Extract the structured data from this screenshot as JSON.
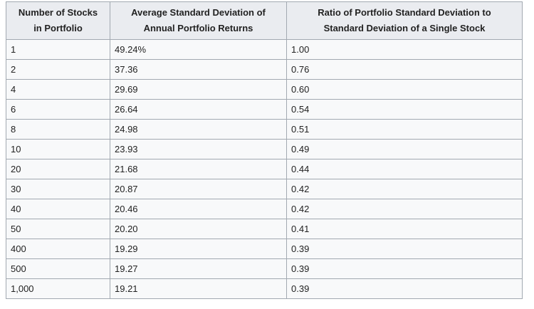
{
  "table": {
    "headers": [
      [
        "Number of Stocks",
        "in Portfolio"
      ],
      [
        "Average Standard Deviation of",
        "Annual Portfolio Returns"
      ],
      [
        "Ratio of Portfolio Standard Deviation to",
        "Standard Deviation of a Single Stock"
      ]
    ],
    "rows": [
      [
        "1",
        "49.24%",
        "1.00"
      ],
      [
        "2",
        "37.36",
        "0.76"
      ],
      [
        "4",
        "29.69",
        "0.60"
      ],
      [
        "6",
        "26.64",
        "0.54"
      ],
      [
        "8",
        "24.98",
        "0.51"
      ],
      [
        "10",
        "23.93",
        "0.49"
      ],
      [
        "20",
        "21.68",
        "0.44"
      ],
      [
        "30",
        "20.87",
        "0.42"
      ],
      [
        "40",
        "20.46",
        "0.42"
      ],
      [
        "50",
        "20.20",
        "0.41"
      ],
      [
        "400",
        "19.29",
        "0.39"
      ],
      [
        "500",
        "19.27",
        "0.39"
      ],
      [
        "1,000",
        "19.21",
        "0.39"
      ]
    ]
  }
}
